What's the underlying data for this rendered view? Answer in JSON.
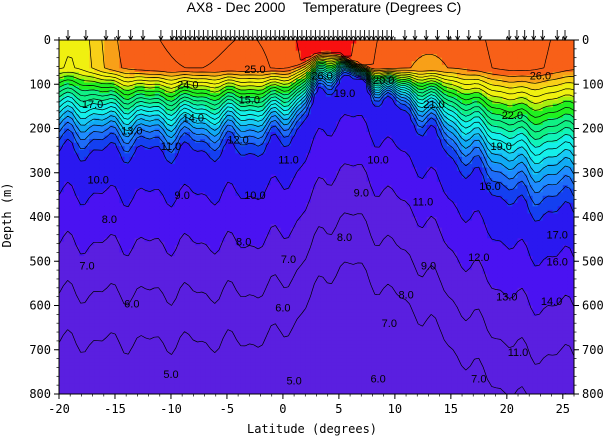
{
  "chart_data": {
    "type": "heatmap",
    "title": "AX8 - Dec 2000",
    "subtitle": "Temperature (Degrees C)",
    "xlabel": "Latitude (degrees)",
    "ylabel": "Depth (m)",
    "xlim": [
      -20,
      26
    ],
    "ylim": [
      800,
      0
    ],
    "x_ticks": [
      "-20",
      "-15",
      "-10",
      "-5",
      "0",
      "5",
      "10",
      "15",
      "20",
      "25"
    ],
    "y_ticks": [
      "0",
      "100",
      "200",
      "300",
      "400",
      "500",
      "600",
      "700",
      "800"
    ],
    "colorbands": [
      {
        "t": 5,
        "color": "#5a1fe0"
      },
      {
        "t": 7,
        "color": "#4a12f2"
      },
      {
        "t": 8,
        "color": "#2a18f0"
      },
      {
        "t": 9,
        "color": "#1440f0"
      },
      {
        "t": 10,
        "color": "#1e6cf8"
      },
      {
        "t": 11,
        "color": "#1e8cff"
      },
      {
        "t": 12,
        "color": "#10aaf4"
      },
      {
        "t": 13,
        "color": "#18caf4"
      },
      {
        "t": 14,
        "color": "#14f0ea"
      },
      {
        "t": 16,
        "color": "#10f4b8"
      },
      {
        "t": 17,
        "color": "#10f084"
      },
      {
        "t": 19,
        "color": "#20f020"
      },
      {
        "t": 21,
        "color": "#a8f010"
      },
      {
        "t": 22,
        "color": "#f0f010"
      },
      {
        "t": 24,
        "color": "#f8d018"
      },
      {
        "t": 25,
        "color": "#f8a018"
      },
      {
        "t": 26,
        "color": "#f86018"
      },
      {
        "t": 28,
        "color": "#f81010"
      },
      {
        "t": 29,
        "color": "#ff00ff"
      }
    ],
    "contour_labels": [
      {
        "text": "24.0",
        "lat": -8.5,
        "depth": 100
      },
      {
        "text": "25.0",
        "lat": -2.5,
        "depth": 65
      },
      {
        "text": "26.0",
        "lat": 3.5,
        "depth": 80
      },
      {
        "text": "19.0",
        "lat": 5.5,
        "depth": 120
      },
      {
        "text": "20.0",
        "lat": 9.0,
        "depth": 90
      },
      {
        "text": "21.0",
        "lat": 13.5,
        "depth": 145
      },
      {
        "text": "22.0",
        "lat": 20.5,
        "depth": 170
      },
      {
        "text": "26.0",
        "lat": 23.0,
        "depth": 80
      },
      {
        "text": "15.0",
        "lat": -3.0,
        "depth": 135
      },
      {
        "text": "14.0",
        "lat": -8.0,
        "depth": 175
      },
      {
        "text": "17.0",
        "lat": -17.0,
        "depth": 145
      },
      {
        "text": "13.0",
        "lat": -13.5,
        "depth": 205
      },
      {
        "text": "12.0",
        "lat": -4.0,
        "depth": 225
      },
      {
        "text": "11.0",
        "lat": -10.0,
        "depth": 240
      },
      {
        "text": "11.0",
        "lat": 0.5,
        "depth": 270
      },
      {
        "text": "10.0",
        "lat": 8.5,
        "depth": 270
      },
      {
        "text": "19.0",
        "lat": 19.5,
        "depth": 240
      },
      {
        "text": "10.0",
        "lat": -16.5,
        "depth": 315
      },
      {
        "text": "10.0",
        "lat": -2.5,
        "depth": 350
      },
      {
        "text": "9.0",
        "lat": -9.0,
        "depth": 350
      },
      {
        "text": "9.0",
        "lat": 7.0,
        "depth": 345
      },
      {
        "text": "16.0",
        "lat": 18.5,
        "depth": 330
      },
      {
        "text": "11.0",
        "lat": 12.5,
        "depth": 365
      },
      {
        "text": "8.0",
        "lat": -15.5,
        "depth": 405
      },
      {
        "text": "8.0",
        "lat": -3.5,
        "depth": 455
      },
      {
        "text": "8.0",
        "lat": 5.5,
        "depth": 445
      },
      {
        "text": "9.0",
        "lat": 13.0,
        "depth": 510
      },
      {
        "text": "12.0",
        "lat": 17.5,
        "depth": 490
      },
      {
        "text": "17.0",
        "lat": 24.5,
        "depth": 440
      },
      {
        "text": "7.0",
        "lat": -17.5,
        "depth": 510
      },
      {
        "text": "7.0",
        "lat": 0.5,
        "depth": 495
      },
      {
        "text": "16.0",
        "lat": 24.5,
        "depth": 500
      },
      {
        "text": "8.0",
        "lat": 11.0,
        "depth": 575
      },
      {
        "text": "13.0",
        "lat": 20.0,
        "depth": 580
      },
      {
        "text": "14.0",
        "lat": 24.0,
        "depth": 590
      },
      {
        "text": "6.0",
        "lat": -13.5,
        "depth": 595
      },
      {
        "text": "6.0",
        "lat": 0.0,
        "depth": 605
      },
      {
        "text": "7.0",
        "lat": 9.5,
        "depth": 640
      },
      {
        "text": "11.0",
        "lat": 21.0,
        "depth": 705
      },
      {
        "text": "5.0",
        "lat": -10.0,
        "depth": 755
      },
      {
        "text": "5.0",
        "lat": 1.0,
        "depth": 770
      },
      {
        "text": "6.0",
        "lat": 8.5,
        "depth": 765
      },
      {
        "text": "7.0",
        "lat": 17.5,
        "depth": 765
      }
    ],
    "station_latitudes": [
      -19.2,
      -17.6,
      -15.8,
      -14.7,
      -13.6,
      -12.5,
      -10.9,
      -9.9,
      -9.5,
      -9.1,
      -8.7,
      -8.3,
      -7.9,
      -7.5,
      -7.1,
      -6.7,
      -6.3,
      -5.9,
      -5.5,
      -5.1,
      -4.7,
      -4.3,
      -3.9,
      -3.5,
      -3.1,
      -2.7,
      -2.3,
      -1.9,
      -1.5,
      -1.1,
      -0.7,
      -0.3,
      0.1,
      0.5,
      0.9,
      1.3,
      1.7,
      2.1,
      2.5,
      2.9,
      3.3,
      3.7,
      4.1,
      4.5,
      4.9,
      5.3,
      5.7,
      6.1,
      6.5,
      6.9,
      7.3,
      7.7,
      8.1,
      8.5,
      8.9,
      9.3,
      9.7,
      10.9,
      11.8,
      12.8,
      13.8,
      14.8,
      15.6,
      16.6,
      17.6,
      20.2,
      20.9,
      21.6,
      22.4,
      23.2,
      24.5,
      25.2
    ]
  }
}
